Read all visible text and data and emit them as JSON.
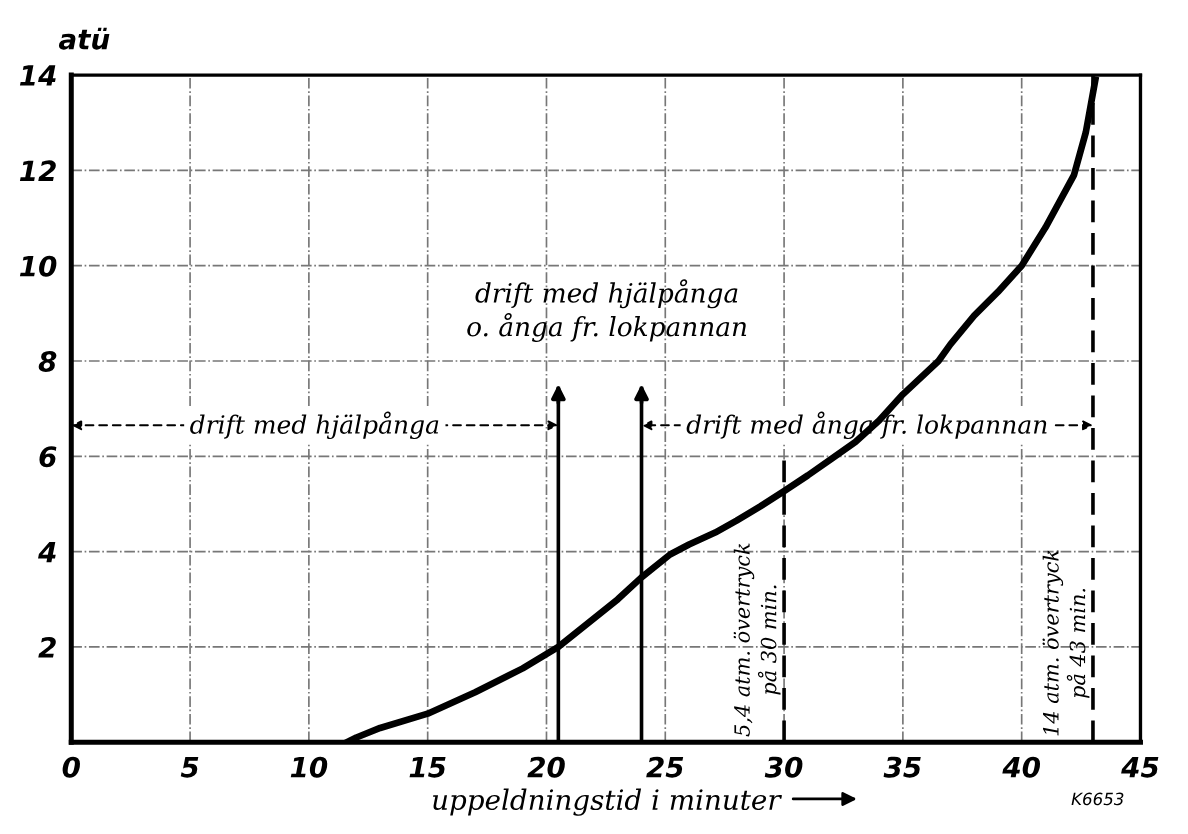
{
  "chart_data": {
    "type": "line",
    "xlabel": "uppeldningstid i minuter",
    "ylabel": "atü",
    "x": [
      11.6,
      12,
      13,
      15,
      17,
      19,
      20.5,
      21,
      22,
      23,
      24,
      25.2,
      26,
      27.1,
      28,
      29,
      30,
      31,
      32,
      33,
      34,
      35,
      36.5,
      37,
      38,
      39,
      40,
      41,
      42.2,
      42.7,
      43.1
    ],
    "series": [
      {
        "color": "#000000",
        "values": [
          0,
          0.1,
          0.3,
          0.6,
          1.05,
          1.55,
          2.0,
          2.2,
          2.6,
          3.0,
          3.46,
          3.94,
          4.15,
          4.4,
          4.65,
          4.95,
          5.27,
          5.6,
          5.95,
          6.3,
          6.75,
          7.3,
          8.0,
          8.35,
          8.95,
          9.45,
          10.0,
          10.8,
          11.9,
          12.8,
          13.9
        ]
      }
    ],
    "xlim": [
      0,
      45
    ],
    "ylim": [
      0,
      14
    ],
    "xticks": [
      0,
      5,
      10,
      15,
      20,
      25,
      30,
      35,
      40,
      45
    ],
    "yticks": [
      {
        "value": 0,
        "label": null
      },
      2,
      4,
      6,
      8,
      10,
      12,
      14
    ],
    "grid": true,
    "line_style": "solid",
    "ref_lines": [
      {
        "axis": "x",
        "value": 20.5,
        "line_style": "solid"
      },
      {
        "axis": "x",
        "value": 24,
        "line_style": "solid"
      },
      {
        "axis": "x",
        "value": 30,
        "line_style": "dashed",
        "label": "5,4 atm. övertryck\npå 30 min."
      },
      {
        "axis": "x",
        "value": 43,
        "line_style": "dashed",
        "label": "14 atm. övertryck\npå 43 min."
      }
    ],
    "annotations": [
      "drift med hjälpånga",
      "drift med ånga fr. lokpannan",
      "drift med hjälpånga\no. ånga fr. lokpannan",
      "K6653"
    ]
  }
}
